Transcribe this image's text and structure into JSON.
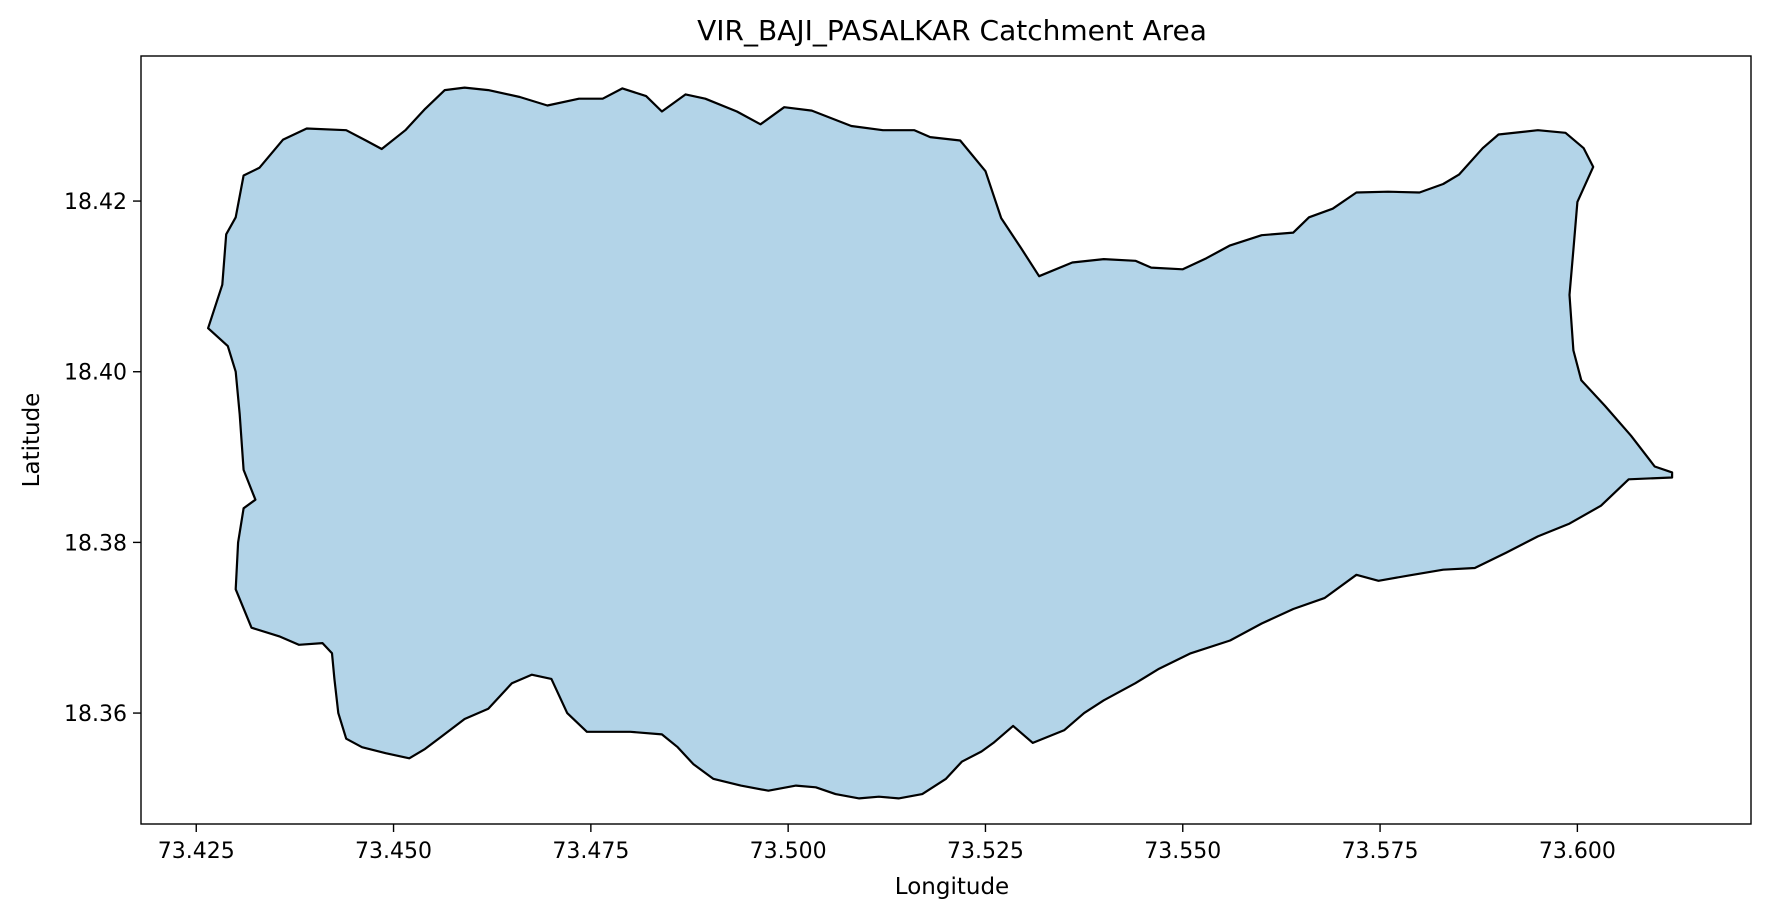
{
  "chart_data": {
    "type": "map-polygon",
    "title": "VIR_BAJI_PASALKAR Catchment Area",
    "xlabel": "Longitude",
    "ylabel": "Latitude",
    "xlim": [
      73.418,
      73.622
    ],
    "ylim": [
      18.347,
      18.437
    ],
    "xticks": [
      73.425,
      73.45,
      73.475,
      73.5,
      73.525,
      73.55,
      73.575,
      73.6
    ],
    "xtick_labels": [
      "73.425",
      "73.450",
      "73.475",
      "73.500",
      "73.525",
      "73.550",
      "73.575",
      "73.600"
    ],
    "yticks": [
      18.36,
      18.38,
      18.4,
      18.42
    ],
    "ytick_labels": [
      "18.36",
      "18.38",
      "18.40",
      "18.42"
    ],
    "grid": false,
    "legend": "none",
    "fill_color": "#b3d4e8",
    "edge_color": "#000000",
    "boundary": [
      [
        73.4265,
        18.4051
      ],
      [
        73.4283,
        18.4102
      ],
      [
        73.4288,
        18.4161
      ],
      [
        73.43,
        18.4181
      ],
      [
        73.431,
        18.423
      ],
      [
        73.433,
        18.4239
      ],
      [
        73.436,
        18.4272
      ],
      [
        73.439,
        18.4285
      ],
      [
        73.444,
        18.4283
      ],
      [
        73.4465,
        18.4271
      ],
      [
        73.4485,
        18.4261
      ],
      [
        73.4515,
        18.4283
      ],
      [
        73.454,
        18.4308
      ],
      [
        73.4565,
        18.433
      ],
      [
        73.459,
        18.4333
      ],
      [
        73.462,
        18.433
      ],
      [
        73.466,
        18.4322
      ],
      [
        73.4695,
        18.4312
      ],
      [
        73.4735,
        18.432
      ],
      [
        73.4765,
        18.432
      ],
      [
        73.479,
        18.4332
      ],
      [
        73.482,
        18.4323
      ],
      [
        73.484,
        18.4305
      ],
      [
        73.487,
        18.4325
      ],
      [
        73.4895,
        18.432
      ],
      [
        73.4935,
        18.4305
      ],
      [
        73.4965,
        18.429
      ],
      [
        73.4995,
        18.431
      ],
      [
        73.503,
        18.4306
      ],
      [
        73.508,
        18.4288
      ],
      [
        73.512,
        18.4283
      ],
      [
        73.516,
        18.4283
      ],
      [
        73.518,
        18.4275
      ],
      [
        73.5218,
        18.4271
      ],
      [
        73.525,
        18.4235
      ],
      [
        73.527,
        18.418
      ],
      [
        73.5295,
        18.4145
      ],
      [
        73.5318,
        18.4112
      ],
      [
        73.536,
        18.4128
      ],
      [
        73.54,
        18.4132
      ],
      [
        73.544,
        18.413
      ],
      [
        73.546,
        18.4122
      ],
      [
        73.55,
        18.412
      ],
      [
        73.553,
        18.4133
      ],
      [
        73.556,
        18.4148
      ],
      [
        73.56,
        18.416
      ],
      [
        73.564,
        18.4163
      ],
      [
        73.566,
        18.4181
      ],
      [
        73.569,
        18.4191
      ],
      [
        73.572,
        18.421
      ],
      [
        73.576,
        18.4211
      ],
      [
        73.58,
        18.421
      ],
      [
        73.583,
        18.422
      ],
      [
        73.585,
        18.4231
      ],
      [
        73.588,
        18.4262
      ],
      [
        73.59,
        18.4278
      ],
      [
        73.595,
        18.4283
      ],
      [
        73.5985,
        18.428
      ],
      [
        73.6008,
        18.4262
      ],
      [
        73.602,
        18.424
      ],
      [
        73.6,
        18.4199
      ],
      [
        73.5995,
        18.4143
      ],
      [
        73.599,
        18.409
      ],
      [
        73.5995,
        18.4025
      ],
      [
        73.6005,
        18.399
      ],
      [
        73.6035,
        18.396
      ],
      [
        73.6068,
        18.3925
      ],
      [
        73.6098,
        18.3889
      ],
      [
        73.612,
        18.3882
      ],
      [
        73.612,
        18.3876
      ],
      [
        73.6065,
        18.3874
      ],
      [
        73.603,
        18.3843
      ],
      [
        73.599,
        18.3822
      ],
      [
        73.595,
        18.3807
      ],
      [
        73.591,
        18.3788
      ],
      [
        73.587,
        18.377
      ],
      [
        73.583,
        18.3768
      ],
      [
        73.5785,
        18.3761
      ],
      [
        73.5748,
        18.3755
      ],
      [
        73.572,
        18.3762
      ],
      [
        73.568,
        18.3735
      ],
      [
        73.564,
        18.3722
      ],
      [
        73.56,
        18.3705
      ],
      [
        73.556,
        18.3685
      ],
      [
        73.551,
        18.367
      ],
      [
        73.547,
        18.3652
      ],
      [
        73.544,
        18.3635
      ],
      [
        73.54,
        18.3615
      ],
      [
        73.5375,
        18.36
      ],
      [
        73.535,
        18.358
      ],
      [
        73.531,
        18.3565
      ],
      [
        73.5285,
        18.3585
      ],
      [
        73.526,
        18.3565
      ],
      [
        73.5245,
        18.3555
      ],
      [
        73.522,
        18.3543
      ],
      [
        73.52,
        18.3523
      ],
      [
        73.517,
        18.3505
      ],
      [
        73.514,
        18.35
      ],
      [
        73.5115,
        18.3502
      ],
      [
        73.509,
        18.35
      ],
      [
        73.506,
        18.3505
      ],
      [
        73.5035,
        18.3513
      ],
      [
        73.501,
        18.3515
      ],
      [
        73.4975,
        18.3509
      ],
      [
        73.494,
        18.3515
      ],
      [
        73.4905,
        18.3523
      ],
      [
        73.488,
        18.354
      ],
      [
        73.486,
        18.356
      ],
      [
        73.484,
        18.3575
      ],
      [
        73.48,
        18.3578
      ],
      [
        73.477,
        18.3578
      ],
      [
        73.4745,
        18.3578
      ],
      [
        73.472,
        18.36
      ],
      [
        73.47,
        18.364
      ],
      [
        73.4675,
        18.3645
      ],
      [
        73.465,
        18.3635
      ],
      [
        73.462,
        18.3605
      ],
      [
        73.459,
        18.3593
      ],
      [
        73.456,
        18.3572
      ],
      [
        73.454,
        18.3558
      ],
      [
        73.452,
        18.3547
      ],
      [
        73.449,
        18.3553
      ],
      [
        73.446,
        18.356
      ],
      [
        73.444,
        18.357
      ],
      [
        73.443,
        18.36
      ],
      [
        73.4425,
        18.364
      ],
      [
        73.4422,
        18.367
      ],
      [
        73.441,
        18.3682
      ],
      [
        73.438,
        18.368
      ],
      [
        73.4355,
        18.369
      ],
      [
        73.432,
        18.37
      ],
      [
        73.43,
        18.3745
      ],
      [
        73.4303,
        18.38
      ],
      [
        73.431,
        18.384
      ],
      [
        73.4325,
        18.385
      ],
      [
        73.431,
        18.3885
      ],
      [
        73.4305,
        18.395
      ],
      [
        73.43,
        18.4
      ],
      [
        73.429,
        18.403
      ]
    ]
  }
}
